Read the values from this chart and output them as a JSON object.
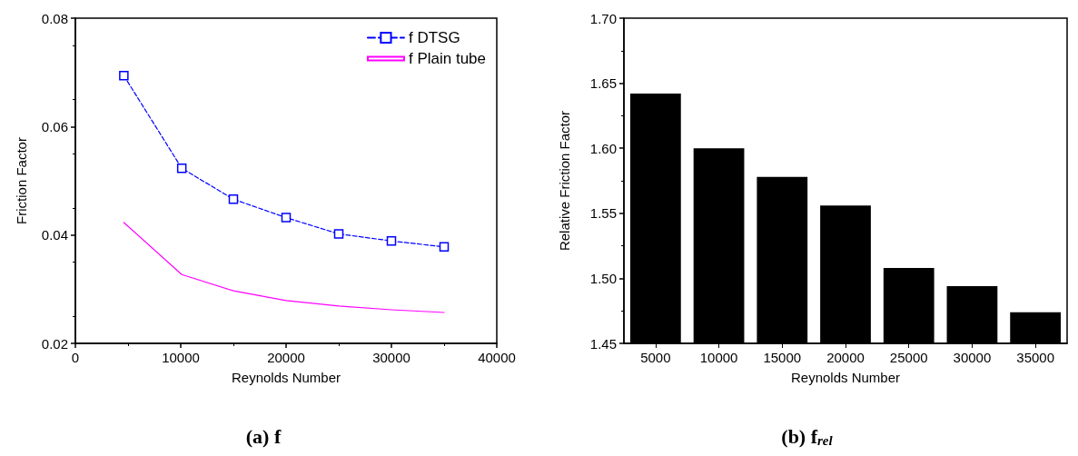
{
  "chart_data": [
    {
      "type": "line",
      "title": "(a) f",
      "xlabel": "Reynolds Number",
      "ylabel": "Friction Factor",
      "xlim": [
        0,
        40000
      ],
      "xticks": [
        0,
        10000,
        20000,
        30000,
        40000
      ],
      "ylim": [
        0.02,
        0.08
      ],
      "yticks": [
        0.02,
        0.04,
        0.06,
        0.08
      ],
      "legend": "top right",
      "grid": false,
      "series": [
        {
          "name": "f DTSG",
          "color": "#0000ff",
          "marker": "square",
          "line_style": "dashed",
          "x": [
            4600,
            10100,
            15000,
            20000,
            25000,
            30000,
            35000
          ],
          "values": [
            0.0694,
            0.0523,
            0.0466,
            0.0432,
            0.0402,
            0.0389,
            0.0378
          ]
        },
        {
          "name": "f Plain tube",
          "color": "#ff00ff",
          "marker": "none",
          "line_style": "solid",
          "x": [
            4600,
            10100,
            15000,
            20000,
            25000,
            30000,
            35000
          ],
          "values": [
            0.0423,
            0.0327,
            0.0297,
            0.0279,
            0.0269,
            0.0262,
            0.0257
          ]
        }
      ]
    },
    {
      "type": "bar",
      "title": "(b) f$_{rel}$",
      "xlabel": "Reynolds Number",
      "ylabel": "Relative Friction Factor",
      "categories": [
        "5000",
        "10000",
        "15000",
        "20000",
        "25000",
        "30000",
        "35000"
      ],
      "values": [
        1.642,
        1.6,
        1.578,
        1.556,
        1.508,
        1.494,
        1.474
      ],
      "color": "#000000",
      "ylim": [
        1.45,
        1.7
      ],
      "yticks": [
        1.45,
        {
          "value": 1.5,
          "label": "1.50"
        },
        1.55,
        {
          "value": 1.6,
          "label": "1.60"
        },
        1.65,
        {
          "value": 1.7,
          "label": "1.70"
        }
      ],
      "grid": false
    }
  ]
}
